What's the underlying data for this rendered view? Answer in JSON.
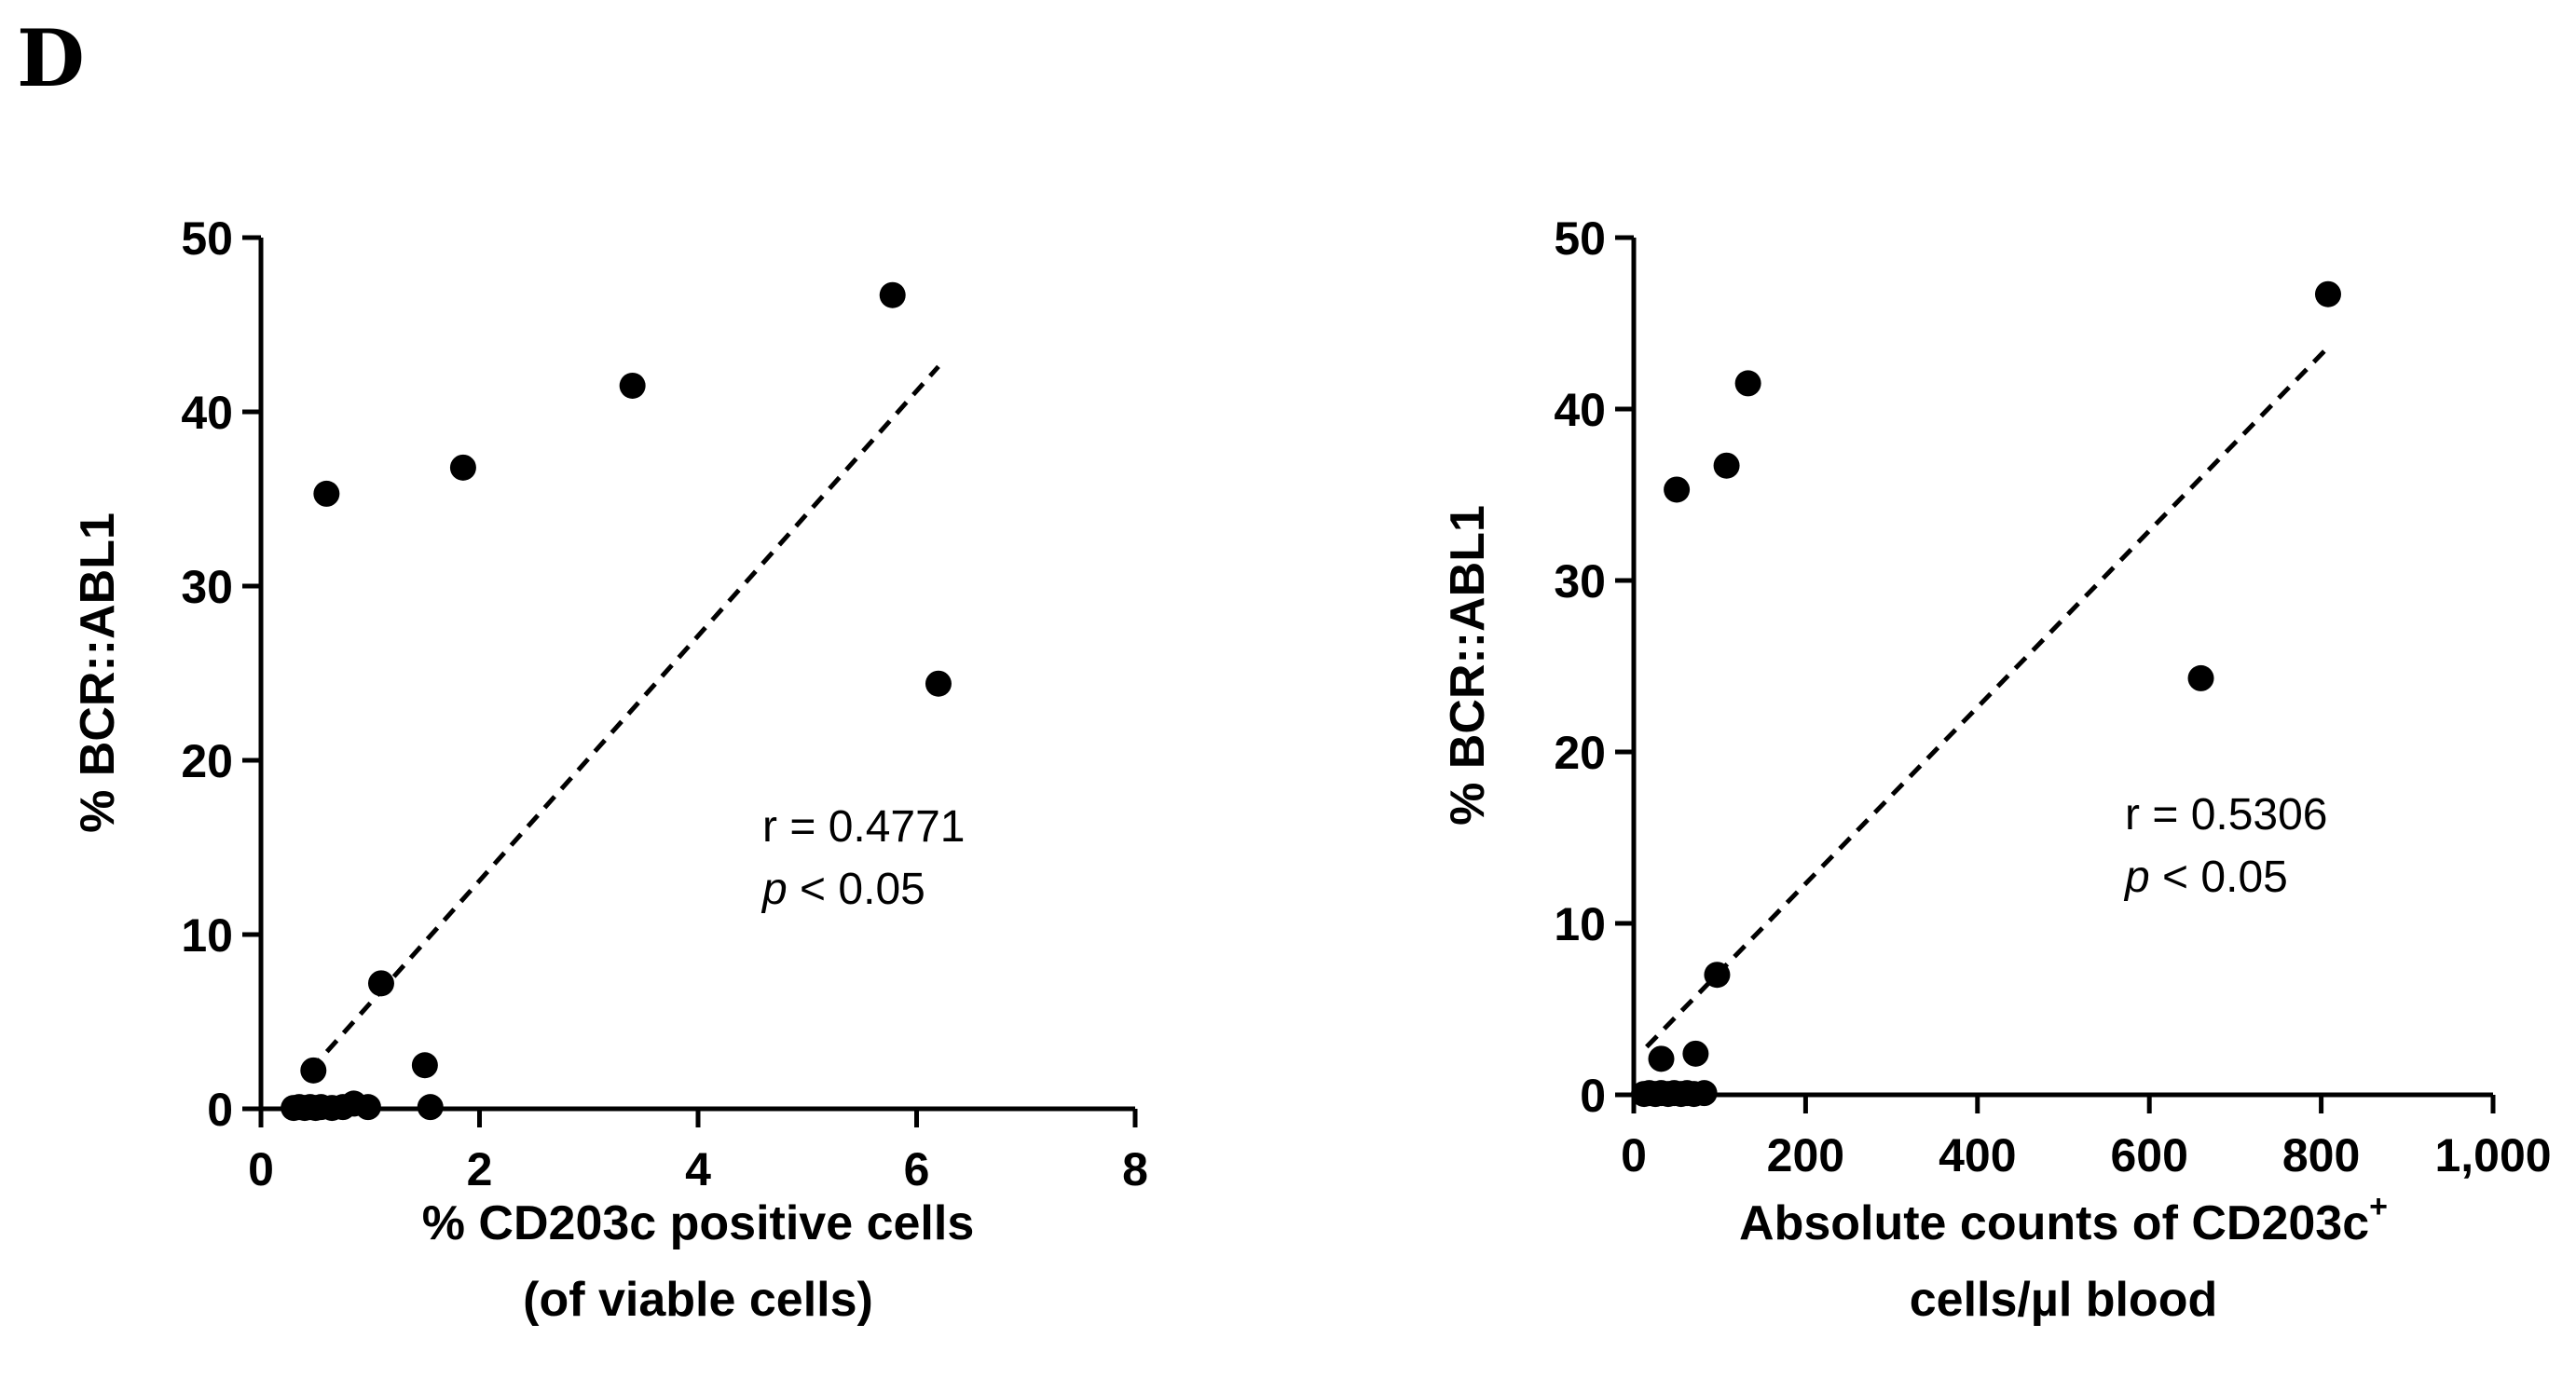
{
  "panel_label": "D",
  "chart_data": [
    {
      "type": "scatter",
      "title": "",
      "xlabel_lines": [
        "% CD203c positive cells",
        "(of viable cells)"
      ],
      "ylabel": "% BCR::ABL1",
      "xlim": [
        0,
        8
      ],
      "ylim": [
        0,
        50
      ],
      "xticks": [
        0,
        2,
        4,
        6,
        8
      ],
      "xtick_labels": [
        "0",
        "2",
        "4",
        "6",
        "8"
      ],
      "yticks": [
        0,
        10,
        20,
        30,
        40,
        50
      ],
      "ytick_labels": [
        "0",
        "10",
        "20",
        "30",
        "40",
        "50"
      ],
      "points": [
        {
          "x": 0.3,
          "y": 0.05
        },
        {
          "x": 0.35,
          "y": 0.1
        },
        {
          "x": 0.4,
          "y": 0.05
        },
        {
          "x": 0.45,
          "y": 0.1
        },
        {
          "x": 0.5,
          "y": 0.05
        },
        {
          "x": 0.55,
          "y": 0.1
        },
        {
          "x": 0.65,
          "y": 0.05
        },
        {
          "x": 0.75,
          "y": 0.1
        },
        {
          "x": 0.85,
          "y": 0.3
        },
        {
          "x": 0.98,
          "y": 0.1
        },
        {
          "x": 1.55,
          "y": 0.1
        },
        {
          "x": 0.48,
          "y": 2.2
        },
        {
          "x": 1.5,
          "y": 2.5
        },
        {
          "x": 1.1,
          "y": 7.2
        },
        {
          "x": 0.6,
          "y": 35.3
        },
        {
          "x": 1.85,
          "y": 36.8
        },
        {
          "x": 3.4,
          "y": 41.5
        },
        {
          "x": 5.78,
          "y": 46.7
        },
        {
          "x": 6.2,
          "y": 24.4
        }
      ],
      "fit_line": {
        "x": [
          0.45,
          6.2
        ],
        "y": [
          2.2,
          42.6
        ]
      },
      "annotation": {
        "r_text": "r = 0.4771",
        "p_symbol": "p",
        "p_rest": " < 0.05"
      }
    },
    {
      "type": "scatter",
      "title": "",
      "xlabel_lines": [
        "Absolute counts of CD203c",
        "cells/µl blood"
      ],
      "xlabel_superscript": "+",
      "ylabel": "% BCR::ABL1",
      "xlim": [
        0,
        1000
      ],
      "ylim": [
        0,
        50
      ],
      "xticks": [
        0,
        200,
        400,
        600,
        800,
        1000
      ],
      "xtick_labels": [
        "0",
        "200",
        "400",
        "600",
        "800",
        "1,000"
      ],
      "yticks": [
        0,
        10,
        20,
        30,
        40,
        50
      ],
      "ytick_labels": [
        "0",
        "10",
        "20",
        "30",
        "40",
        "50"
      ],
      "points": [
        {
          "x": 12,
          "y": 0.05
        },
        {
          "x": 18,
          "y": 0.1
        },
        {
          "x": 25,
          "y": 0.05
        },
        {
          "x": 32,
          "y": 0.1
        },
        {
          "x": 40,
          "y": 0.05
        },
        {
          "x": 47,
          "y": 0.1
        },
        {
          "x": 55,
          "y": 0.05
        },
        {
          "x": 62,
          "y": 0.1
        },
        {
          "x": 70,
          "y": 0.05
        },
        {
          "x": 82,
          "y": 0.1
        },
        {
          "x": 32,
          "y": 2.1
        },
        {
          "x": 72,
          "y": 2.4
        },
        {
          "x": 97,
          "y": 7.0
        },
        {
          "x": 50,
          "y": 35.3
        },
        {
          "x": 108,
          "y": 36.7
        },
        {
          "x": 133,
          "y": 41.5
        },
        {
          "x": 808,
          "y": 46.7
        },
        {
          "x": 660,
          "y": 24.3
        }
      ],
      "fit_line": {
        "x": [
          15,
          808
        ],
        "y": [
          2.8,
          43.6
        ]
      },
      "annotation": {
        "r_text": "r = 0.5306",
        "p_symbol": "p",
        "p_rest": " < 0.05"
      }
    }
  ]
}
